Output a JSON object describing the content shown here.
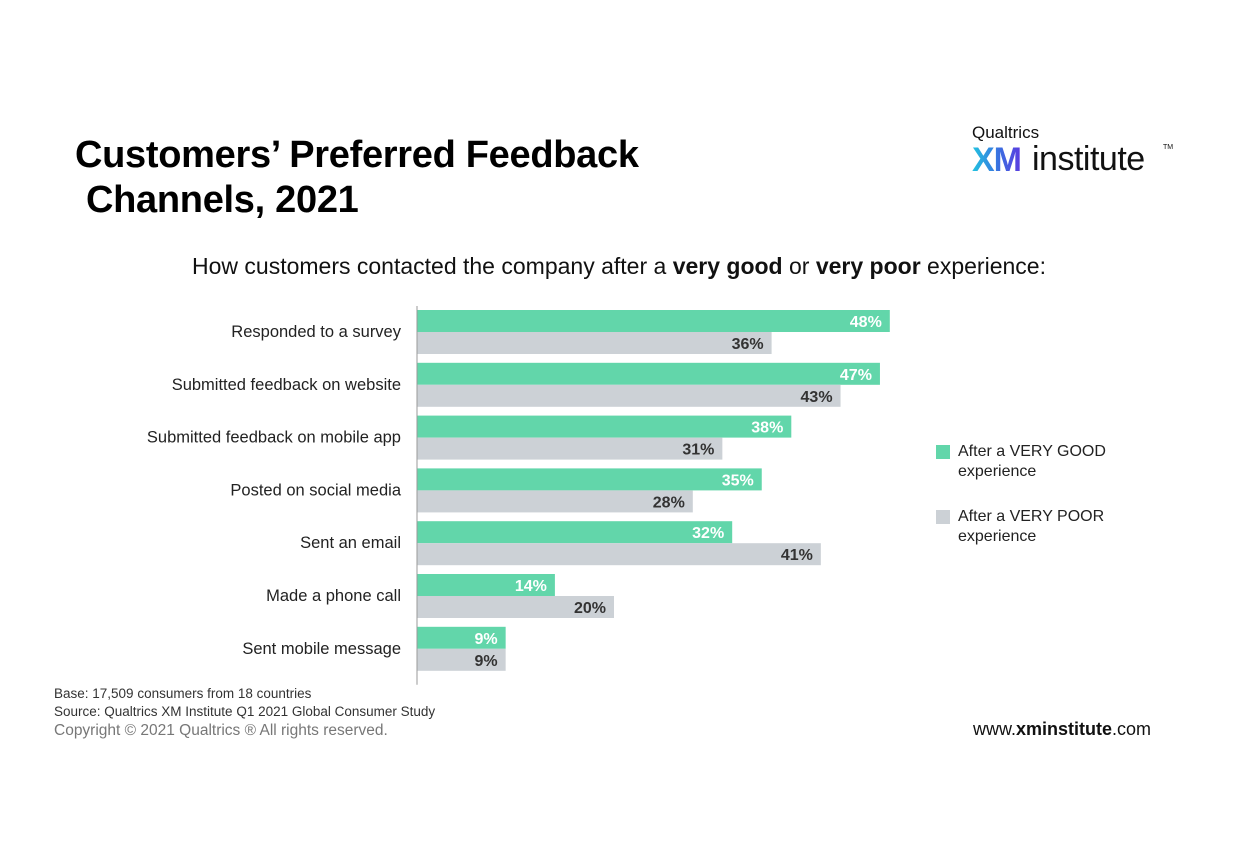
{
  "title_line1": "Customers’ Preferred Feedback",
  "title_line2": "Channels, 2021",
  "logo": {
    "small": "Qualtrics",
    "xm": "XM",
    "rest": "institute",
    "tm": "TM"
  },
  "subtitle": {
    "pre": "How customers contacted the company after a ",
    "bold1": "very good",
    "mid": " or ",
    "bold2": "very poor",
    "post": " experience:"
  },
  "colors": {
    "good": "#62d6aa",
    "poor": "#ccd1d6",
    "axis": "#9a9a9a"
  },
  "chart_data": {
    "type": "bar",
    "orientation": "horizontal",
    "categories": [
      "Responded to a survey",
      "Submitted feedback on website",
      "Submitted feedback on mobile app",
      "Posted on social media",
      "Sent an email",
      "Made a phone call",
      "Sent mobile message"
    ],
    "series": [
      {
        "name": "After a VERY GOOD experience",
        "values": [
          48,
          47,
          38,
          35,
          32,
          14,
          9
        ],
        "color": "#62d6aa"
      },
      {
        "name": "After a VERY POOR experience",
        "values": [
          36,
          43,
          31,
          28,
          41,
          20,
          9
        ],
        "color": "#ccd1d6"
      }
    ],
    "value_suffix": "%",
    "legend_position": "right",
    "grid": false
  },
  "legend": {
    "good_line1": "After a VERY GOOD",
    "good_line2": "experience",
    "poor_line1": "After a VERY POOR",
    "poor_line2": "experience"
  },
  "notes": {
    "base": "Base: 17,509 consumers from 18 countries",
    "source": "Source: Qualtrics XM Institute Q1 2021 Global Consumer Study",
    "copyright": "Copyright © 2021 Qualtrics ® All rights reserved."
  },
  "url": {
    "pre": "www.",
    "bold": "xminstitute",
    "post": ".com"
  }
}
